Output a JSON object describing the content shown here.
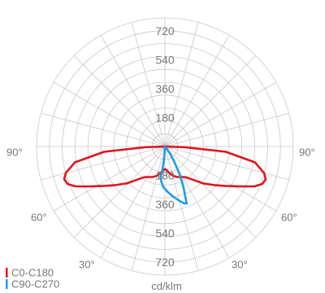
{
  "chart_data": {
    "type": "polar",
    "unit": "cd/klm",
    "radial_ticks": [
      180,
      360,
      540,
      720
    ],
    "radial_tick_labels": [
      "180",
      "360",
      "540",
      "720",
      "180",
      "360",
      "540",
      "720"
    ],
    "radial_max": 800,
    "angle_labels": [
      "90°",
      "90°",
      "60°",
      "60°",
      "30°",
      "30°"
    ],
    "grid": true,
    "legend_placement": "bottom-left",
    "series": [
      {
        "name": "C0-C180",
        "color": "#e0161e",
        "points": [
          [
            -90,
            0
          ],
          [
            -88,
            120
          ],
          [
            -85,
            380
          ],
          [
            -80,
            570
          ],
          [
            -75,
            640
          ],
          [
            -72,
            660
          ],
          [
            -69,
            650
          ],
          [
            -66,
            610
          ],
          [
            -62,
            530
          ],
          [
            -57,
            450
          ],
          [
            -52,
            390
          ],
          [
            -46,
            330
          ],
          [
            -40,
            270
          ],
          [
            -34,
            230
          ],
          [
            -28,
            215
          ],
          [
            -22,
            205
          ],
          [
            -16,
            190
          ],
          [
            -10,
            170
          ],
          [
            -5,
            150
          ],
          [
            0,
            140
          ],
          [
            5,
            150
          ],
          [
            10,
            170
          ],
          [
            16,
            190
          ],
          [
            22,
            205
          ],
          [
            28,
            215
          ],
          [
            34,
            230
          ],
          [
            40,
            270
          ],
          [
            46,
            330
          ],
          [
            52,
            390
          ],
          [
            57,
            450
          ],
          [
            62,
            530
          ],
          [
            66,
            610
          ],
          [
            69,
            650
          ],
          [
            72,
            660
          ],
          [
            75,
            640
          ],
          [
            80,
            570
          ],
          [
            85,
            380
          ],
          [
            88,
            120
          ],
          [
            90,
            0
          ]
        ]
      },
      {
        "name": "C90-C270",
        "color": "#1e9be6",
        "points": [
          [
            0,
            0
          ],
          [
            -3,
            60
          ],
          [
            -6,
            140
          ],
          [
            -8,
            185
          ],
          [
            -6,
            220
          ],
          [
            -2,
            255
          ],
          [
            4,
            285
          ],
          [
            10,
            320
          ],
          [
            15,
            350
          ],
          [
            19,
            375
          ],
          [
            21,
            380
          ],
          [
            22,
            340
          ],
          [
            24,
            290
          ],
          [
            26,
            240
          ],
          [
            28,
            190
          ],
          [
            30,
            140
          ],
          [
            32,
            100
          ],
          [
            35,
            60
          ],
          [
            38,
            20
          ],
          [
            40,
            0
          ]
        ]
      }
    ]
  }
}
